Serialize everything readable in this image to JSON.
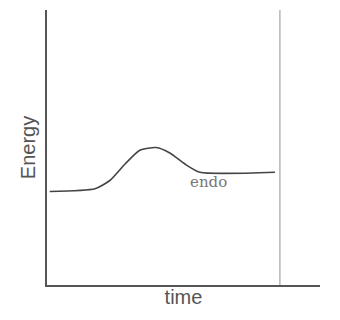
{
  "chart_data": {
    "type": "line",
    "x_label": "time",
    "y_label": "Energy",
    "series": [
      {
        "color": "#444444",
        "x": [
          0.1,
          1.76,
          2.3,
          2.86,
          3.4,
          4.0,
          4.5,
          5.05,
          5.6,
          8.35
        ],
        "values": [
          3.4,
          3.5,
          3.8,
          4.4,
          4.9,
          5.0,
          4.8,
          4.4,
          4.1,
          4.1
        ]
      },
      {
        "color": "#bbbbbb",
        "x": [
          8.53,
          8.53
        ],
        "values": [
          0,
          10
        ]
      }
    ],
    "annotations": [
      {
        "text": "endo",
        "x": 5.9,
        "y": 3.75
      }
    ],
    "xlim": [
      0,
      10
    ],
    "ylim": [
      0,
      10
    ],
    "xticks": [],
    "yticks": [],
    "tick_labels": false,
    "grid": false
  }
}
